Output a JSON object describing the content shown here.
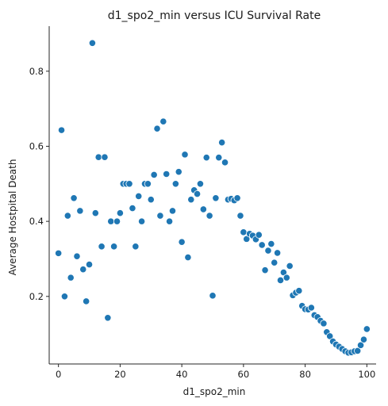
{
  "chart_data": {
    "type": "scatter",
    "title": "d1_spo2_min versus ICU Survival Rate",
    "xlabel": "d1_spo2_min",
    "ylabel": "Average Hostpital Death",
    "xlim": [
      -3,
      103
    ],
    "ylim": [
      0.02,
      0.92
    ],
    "xticks": [
      0,
      20,
      40,
      60,
      80,
      100
    ],
    "yticks": [
      0.2,
      0.4,
      0.6,
      0.8
    ],
    "grid": false,
    "marker_color": "#1f77b4",
    "series": [
      {
        "points": [
          [
            0,
            0.315
          ],
          [
            1,
            0.643
          ],
          [
            2,
            0.2
          ],
          [
            3,
            0.415
          ],
          [
            4,
            0.25
          ],
          [
            5,
            0.462
          ],
          [
            6,
            0.307
          ],
          [
            7,
            0.428
          ],
          [
            8,
            0.272
          ],
          [
            9,
            0.187
          ],
          [
            10,
            0.285
          ],
          [
            11,
            0.875
          ],
          [
            12,
            0.422
          ],
          [
            13,
            0.571
          ],
          [
            14,
            0.333
          ],
          [
            15,
            0.571
          ],
          [
            16,
            0.143
          ],
          [
            17,
            0.4
          ],
          [
            18,
            0.333
          ],
          [
            19,
            0.4
          ],
          [
            20,
            0.422
          ],
          [
            21,
            0.5
          ],
          [
            22,
            0.5
          ],
          [
            23,
            0.5
          ],
          [
            24,
            0.435
          ],
          [
            25,
            0.333
          ],
          [
            26,
            0.467
          ],
          [
            27,
            0.4
          ],
          [
            28,
            0.5
          ],
          [
            29,
            0.5
          ],
          [
            30,
            0.458
          ],
          [
            31,
            0.524
          ],
          [
            32,
            0.647
          ],
          [
            33,
            0.415
          ],
          [
            34,
            0.666
          ],
          [
            35,
            0.526
          ],
          [
            36,
            0.4
          ],
          [
            37,
            0.428
          ],
          [
            38,
            0.5
          ],
          [
            39,
            0.532
          ],
          [
            40,
            0.345
          ],
          [
            41,
            0.578
          ],
          [
            42,
            0.304
          ],
          [
            43,
            0.458
          ],
          [
            44,
            0.483
          ],
          [
            45,
            0.473
          ],
          [
            46,
            0.5
          ],
          [
            47,
            0.432
          ],
          [
            48,
            0.57
          ],
          [
            49,
            0.415
          ],
          [
            50,
            0.202
          ],
          [
            51,
            0.462
          ],
          [
            52,
            0.57
          ],
          [
            53,
            0.61
          ],
          [
            54,
            0.557
          ],
          [
            55,
            0.458
          ],
          [
            56,
            0.46
          ],
          [
            57,
            0.456
          ],
          [
            58,
            0.462
          ],
          [
            59,
            0.415
          ],
          [
            60,
            0.371
          ],
          [
            61,
            0.353
          ],
          [
            62,
            0.367
          ],
          [
            63,
            0.362
          ],
          [
            64,
            0.352
          ],
          [
            65,
            0.364
          ],
          [
            66,
            0.337
          ],
          [
            67,
            0.27
          ],
          [
            68,
            0.322
          ],
          [
            69,
            0.34
          ],
          [
            70,
            0.29
          ],
          [
            71,
            0.316
          ],
          [
            72,
            0.243
          ],
          [
            73,
            0.264
          ],
          [
            74,
            0.25
          ],
          [
            75,
            0.281
          ],
          [
            76,
            0.203
          ],
          [
            77,
            0.21
          ],
          [
            78,
            0.215
          ],
          [
            79,
            0.175
          ],
          [
            80,
            0.166
          ],
          [
            81,
            0.165
          ],
          [
            82,
            0.17
          ],
          [
            83,
            0.15
          ],
          [
            84,
            0.145
          ],
          [
            85,
            0.135
          ],
          [
            86,
            0.128
          ],
          [
            87,
            0.105
          ],
          [
            88,
            0.094
          ],
          [
            89,
            0.08
          ],
          [
            90,
            0.072
          ],
          [
            91,
            0.066
          ],
          [
            92,
            0.06
          ],
          [
            93,
            0.054
          ],
          [
            94,
            0.05
          ],
          [
            95,
            0.051
          ],
          [
            96,
            0.054
          ],
          [
            97,
            0.055
          ],
          [
            98,
            0.07
          ],
          [
            99,
            0.085
          ],
          [
            100,
            0.113
          ]
        ]
      }
    ]
  }
}
